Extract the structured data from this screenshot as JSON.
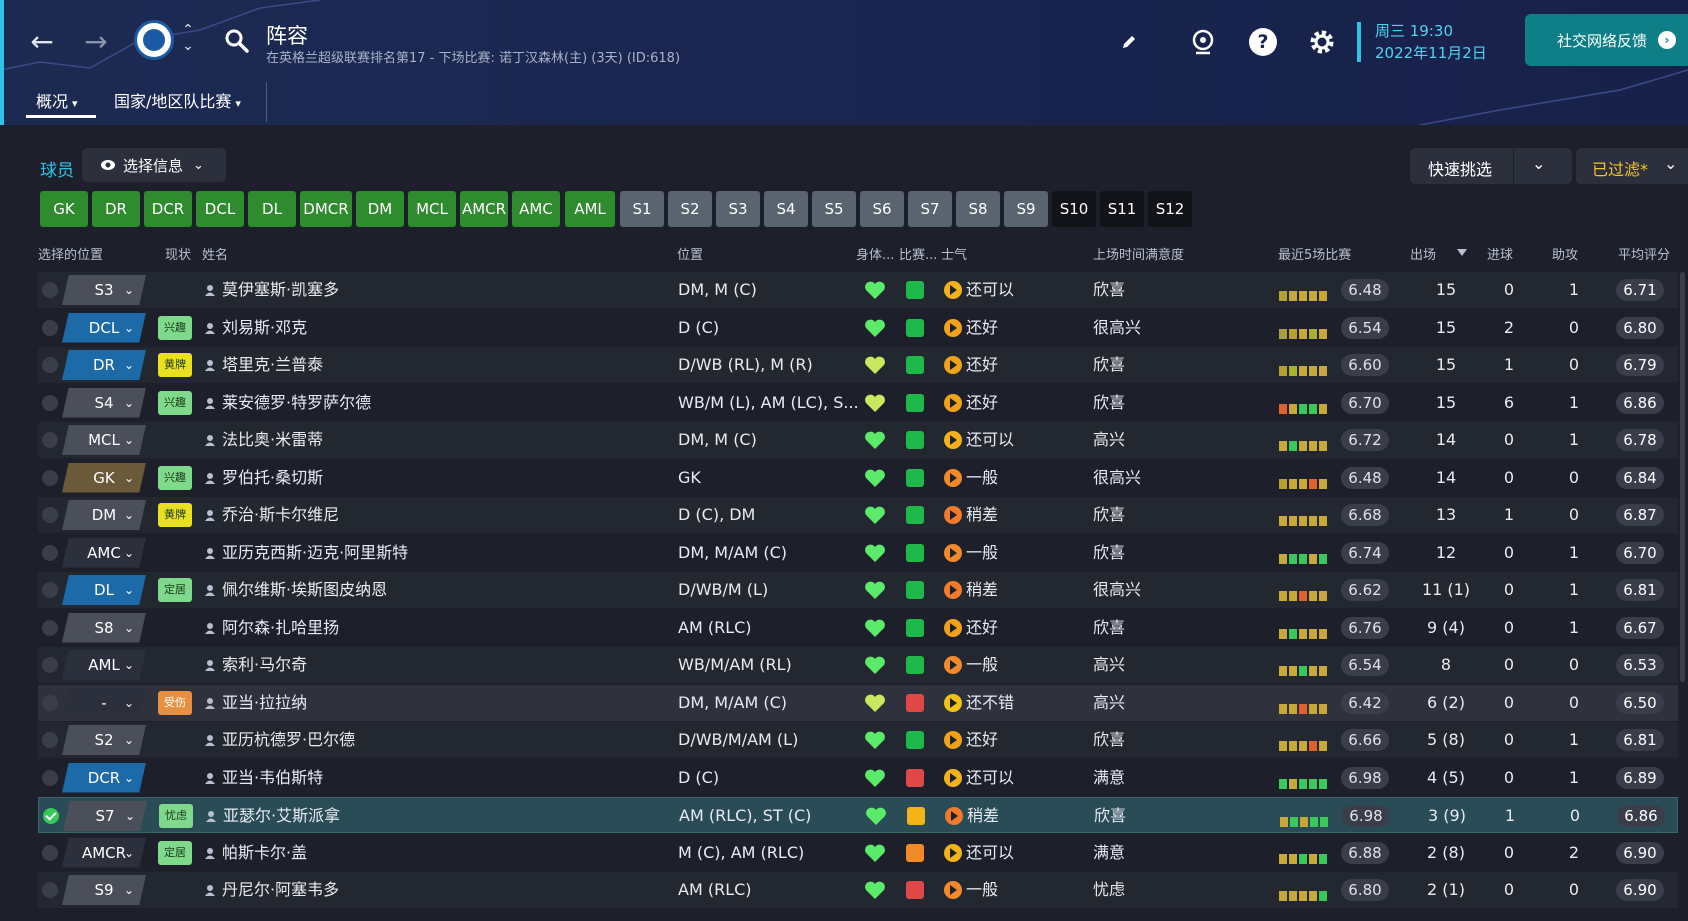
{
  "header": {
    "title": "阵容",
    "subtitle": "在英格兰超级联赛排名第17 - 下场比赛: 诺丁汉森林(主) (3天) (ID:618)",
    "date_day": "周三 19:30",
    "date_full": "2022年11月2日",
    "social_button": "社交网络反馈",
    "tabs": [
      {
        "label": "概况"
      },
      {
        "label": "国家/地区队比赛"
      }
    ]
  },
  "toolbar": {
    "players_label": "球员",
    "select_info_label": "选择信息",
    "quick_pick_label": "快速挑选",
    "filtered_label": "已过滤*"
  },
  "position_filters": [
    {
      "label": "GK",
      "color": "#2e8b2e"
    },
    {
      "label": "DR",
      "color": "#2e8b2e"
    },
    {
      "label": "DCR",
      "color": "#2e8b2e"
    },
    {
      "label": "DCL",
      "color": "#2e8b2e"
    },
    {
      "label": "DL",
      "color": "#2e8b2e"
    },
    {
      "label": "DMCR",
      "color": "#2e8b2e"
    },
    {
      "label": "DM",
      "color": "#2e8b2e"
    },
    {
      "label": "MCL",
      "color": "#2e8b2e"
    },
    {
      "label": "AMCR",
      "color": "#2e8b2e"
    },
    {
      "label": "AMC",
      "color": "#2e8b2e"
    },
    {
      "label": "AML",
      "color": "#2e8b2e"
    },
    {
      "label": "S1",
      "color": "#5a6470"
    },
    {
      "label": "S2",
      "color": "#5a6470"
    },
    {
      "label": "S3",
      "color": "#5a6470"
    },
    {
      "label": "S4",
      "color": "#5a6470"
    },
    {
      "label": "S5",
      "color": "#5a6470"
    },
    {
      "label": "S6",
      "color": "#5a6470"
    },
    {
      "label": "S7",
      "color": "#5a6470"
    },
    {
      "label": "S8",
      "color": "#5a6470"
    },
    {
      "label": "S9",
      "color": "#5a6470"
    },
    {
      "label": "S10",
      "color": "#111318"
    },
    {
      "label": "S11",
      "color": "#111318"
    },
    {
      "label": "S12",
      "color": "#111318"
    }
  ],
  "table": {
    "columns": [
      "选择的位置",
      "现状",
      "姓名",
      "位置",
      "身体...",
      "比赛...",
      "士气",
      "上场时间满意度",
      "最近5场比赛",
      "出场",
      "进球",
      "助攻",
      "平均评分"
    ],
    "rows": [
      {
        "sel": "S3",
        "selc": "#4a4f5a",
        "badge": "",
        "badgec": "",
        "name": "莫伊塞斯·凯塞多",
        "pos": "DM, M (C)",
        "heart": "#5bea6a",
        "morale": "#1fb84a",
        "mood": "#f2b218",
        "moral": "还可以",
        "sat": "欣喜",
        "form": [
          "#b5a030",
          "#c8a838",
          "#c8a838",
          "#c8a838",
          "#c8a838"
        ],
        "last5": "6.48",
        "apps": "15",
        "goals": "0",
        "assists": "1",
        "rating": "6.71"
      },
      {
        "sel": "DCL",
        "selc": "#1c6aa8",
        "badge": "兴趣",
        "badgec": "#7fd98a",
        "name": "刘易斯·邓克",
        "pos": "D (C)",
        "heart": "#5bea6a",
        "morale": "#1fb84a",
        "mood": "#f2a218",
        "moral": "还好",
        "sat": "很高兴",
        "form": [
          "#a8a040",
          "#b5a030",
          "#c8a838",
          "#a8b030",
          "#c8a838"
        ],
        "last5": "6.54",
        "apps": "15",
        "goals": "2",
        "assists": "0",
        "rating": "6.80"
      },
      {
        "sel": "DR",
        "selc": "#1c6aa8",
        "badge": "黄牌",
        "badgec": "#e8e020",
        "name": "塔里克·兰普泰",
        "pos": "D/WB (RL), M (R)",
        "heart": "#c8e860",
        "morale": "#1fb84a",
        "mood": "#f2a218",
        "moral": "还好",
        "sat": "欣喜",
        "form": [
          "#b5a030",
          "#a8b030",
          "#c8a838",
          "#c8a838",
          "#c8a838"
        ],
        "last5": "6.60",
        "apps": "15",
        "goals": "1",
        "assists": "0",
        "rating": "6.79"
      },
      {
        "sel": "S4",
        "selc": "#4a4f5a",
        "badge": "兴趣",
        "badgec": "#7fd98a",
        "name": "莱安德罗·特罗萨尔德",
        "pos": "WB/M (L), AM (LC), S...",
        "heart": "#c8e860",
        "morale": "#1fb84a",
        "mood": "#f2a218",
        "moral": "还好",
        "sat": "欣喜",
        "form": [
          "#e06030",
          "#c8a838",
          "#3ac85a",
          "#3ac85a",
          "#c8a838"
        ],
        "last5": "6.70",
        "apps": "15",
        "goals": "6",
        "assists": "1",
        "rating": "6.86"
      },
      {
        "sel": "MCL",
        "selc": "#4a4f5a",
        "badge": "",
        "badgec": "",
        "name": "法比奥·米雷蒂",
        "pos": "DM, M (C)",
        "heart": "#5bea6a",
        "morale": "#1fb84a",
        "mood": "#f2b218",
        "moral": "还可以",
        "sat": "高兴",
        "form": [
          "#c8a838",
          "#3ac85a",
          "#c8a838",
          "#c8a838",
          "#c8a838"
        ],
        "last5": "6.72",
        "apps": "14",
        "goals": "0",
        "assists": "1",
        "rating": "6.78"
      },
      {
        "sel": "GK",
        "selc": "#6a5a3a",
        "badge": "兴趣",
        "badgec": "#7fd98a",
        "name": "罗伯托·桑切斯",
        "pos": "GK",
        "heart": "#5bea6a",
        "morale": "#1fb84a",
        "mood": "#f28a28",
        "moral": "一般",
        "sat": "很高兴",
        "form": [
          "#b5a030",
          "#c8a838",
          "#c8a838",
          "#e06030",
          "#c8a838"
        ],
        "last5": "6.48",
        "apps": "14",
        "goals": "0",
        "assists": "0",
        "rating": "6.84"
      },
      {
        "sel": "DM",
        "selc": "#4a4f5a",
        "badge": "黄牌",
        "badgec": "#e8e020",
        "name": "乔治·斯卡尔维尼",
        "pos": "D (C), DM",
        "heart": "#5bea6a",
        "morale": "#1fb84a",
        "mood": "#f27a28",
        "moral": "稍差",
        "sat": "欣喜",
        "form": [
          "#c8a838",
          "#c8a838",
          "#c8a838",
          "#c8a838",
          "#c8a838"
        ],
        "last5": "6.68",
        "apps": "13",
        "goals": "1",
        "assists": "0",
        "rating": "6.87"
      },
      {
        "sel": "AMC",
        "selc": "#2c303c",
        "badge": "",
        "badgec": "",
        "name": "亚历克西斯·迈克·阿里斯特",
        "pos": "DM, M/AM (C)",
        "heart": "#5bea6a",
        "morale": "#1fb84a",
        "mood": "#f28a28",
        "moral": "一般",
        "sat": "欣喜",
        "form": [
          "#c8a838",
          "#3ac85a",
          "#3ac85a",
          "#c8a838",
          "#3ac85a"
        ],
        "last5": "6.74",
        "apps": "12",
        "goals": "0",
        "assists": "1",
        "rating": "6.70"
      },
      {
        "sel": "DL",
        "selc": "#1c6aa8",
        "badge": "定居",
        "badgec": "#7fd98a",
        "name": "佩尔维斯·埃斯图皮纳恩",
        "pos": "D/WB/M (L)",
        "heart": "#5bea6a",
        "morale": "#1fb84a",
        "mood": "#f27a28",
        "moral": "稍差",
        "sat": "很高兴",
        "form": [
          "#c8a838",
          "#c8a838",
          "#e06030",
          "#c8a838",
          "#c8a838"
        ],
        "last5": "6.62",
        "apps": "11 (1)",
        "goals": "0",
        "assists": "1",
        "rating": "6.81"
      },
      {
        "sel": "S8",
        "selc": "#4a4f5a",
        "badge": "",
        "badgec": "",
        "name": "阿尔森·扎哈里扬",
        "pos": "AM (RLC)",
        "heart": "#5bea6a",
        "morale": "#1fb84a",
        "mood": "#f2a218",
        "moral": "还好",
        "sat": "欣喜",
        "form": [
          "#c8a838",
          "#3ac85a",
          "#c8a838",
          "#c8a838",
          "#c8a838"
        ],
        "last5": "6.76",
        "apps": "9 (4)",
        "goals": "0",
        "assists": "1",
        "rating": "6.67"
      },
      {
        "sel": "AML",
        "selc": "#2c303c",
        "badge": "",
        "badgec": "",
        "name": "索利·马尔奇",
        "pos": "WB/M/AM (RL)",
        "heart": "#5bea6a",
        "morale": "#1fb84a",
        "mood": "#f28a28",
        "moral": "一般",
        "sat": "高兴",
        "form": [
          "#c8a838",
          "#c8a838",
          "#3ac85a",
          "#c8a838",
          "#c8a838"
        ],
        "last5": "6.54",
        "apps": "8",
        "goals": "0",
        "assists": "0",
        "rating": "6.53"
      },
      {
        "sel": "-",
        "selc": "#2c303c",
        "badge": "受伤",
        "badgec": "#e89040",
        "name": "亚当·拉拉纳",
        "pos": "DM, M/AM (C)",
        "heart": "#c8e860",
        "morale": "#e04848",
        "mood": "#f2c218",
        "moral": "还不错",
        "sat": "高兴",
        "form": [
          "#c8a838",
          "#c8a838",
          "#e06030",
          "#c8a838",
          "#c8a838"
        ],
        "last5": "6.42",
        "apps": "6 (2)",
        "goals": "0",
        "assists": "0",
        "rating": "6.50"
      },
      {
        "sel": "S2",
        "selc": "#4a4f5a",
        "badge": "",
        "badgec": "",
        "name": "亚历杭德罗·巴尔德",
        "pos": "D/WB/M/AM (L)",
        "heart": "#5bea6a",
        "morale": "#1fb84a",
        "mood": "#f2a218",
        "moral": "还好",
        "sat": "欣喜",
        "form": [
          "#c8a838",
          "#c8a838",
          "#c8a838",
          "#e06030",
          "#c8a838"
        ],
        "last5": "6.66",
        "apps": "5 (8)",
        "goals": "0",
        "assists": "1",
        "rating": "6.81"
      },
      {
        "sel": "DCR",
        "selc": "#1c6aa8",
        "badge": "",
        "badgec": "",
        "name": "亚当·韦伯斯特",
        "pos": "D (C)",
        "heart": "#5bea6a",
        "morale": "#e04848",
        "mood": "#f2b218",
        "moral": "还可以",
        "sat": "满意",
        "form": [
          "#3ac85a",
          "#c8a838",
          "#3ac85a",
          "#3ac85a",
          "#3ac85a"
        ],
        "last5": "6.98",
        "apps": "4 (5)",
        "goals": "0",
        "assists": "1",
        "rating": "6.89"
      },
      {
        "sel": "S7",
        "selc": "#4a4f5a",
        "badge": "忧虑",
        "badgec": "#7fd98a",
        "name": "亚瑟尔·艾斯派拿",
        "pos": "AM (RLC), ST (C)",
        "heart": "#5bea6a",
        "morale": "#f2b218",
        "mood": "#f27a28",
        "moral": "稍差",
        "sat": "欣喜",
        "form": [
          "#c8a838",
          "#3ac85a",
          "#c8a838",
          "#3ac85a",
          "#3ac85a"
        ],
        "last5": "6.98",
        "apps": "3 (9)",
        "goals": "1",
        "assists": "0",
        "rating": "6.86"
      },
      {
        "sel": "AMCR",
        "selc": "#2c303c",
        "badge": "定居",
        "badgec": "#7fd98a",
        "name": "帕斯卡尔·盖",
        "pos": "M (C), AM (RLC)",
        "heart": "#5bea6a",
        "morale": "#f28a28",
        "mood": "#f2b218",
        "moral": "还可以",
        "sat": "满意",
        "form": [
          "#c8a838",
          "#c8a838",
          "#3ac85a",
          "#c8a838",
          "#3ac85a"
        ],
        "last5": "6.88",
        "apps": "2 (8)",
        "goals": "0",
        "assists": "2",
        "rating": "6.90"
      },
      {
        "sel": "S9",
        "selc": "#4a4f5a",
        "badge": "",
        "badgec": "",
        "name": "丹尼尔·阿塞韦多",
        "pos": "AM (RLC)",
        "heart": "#5bea6a",
        "morale": "#e04848",
        "mood": "#f28a28",
        "moral": "一般",
        "sat": "忧虑",
        "form": [
          "#c8a838",
          "#c8a838",
          "#c8a838",
          "#c8a838",
          "#3ac85a"
        ],
        "last5": "6.80",
        "apps": "2 (1)",
        "goals": "0",
        "assists": "0",
        "rating": "6.90"
      }
    ]
  }
}
